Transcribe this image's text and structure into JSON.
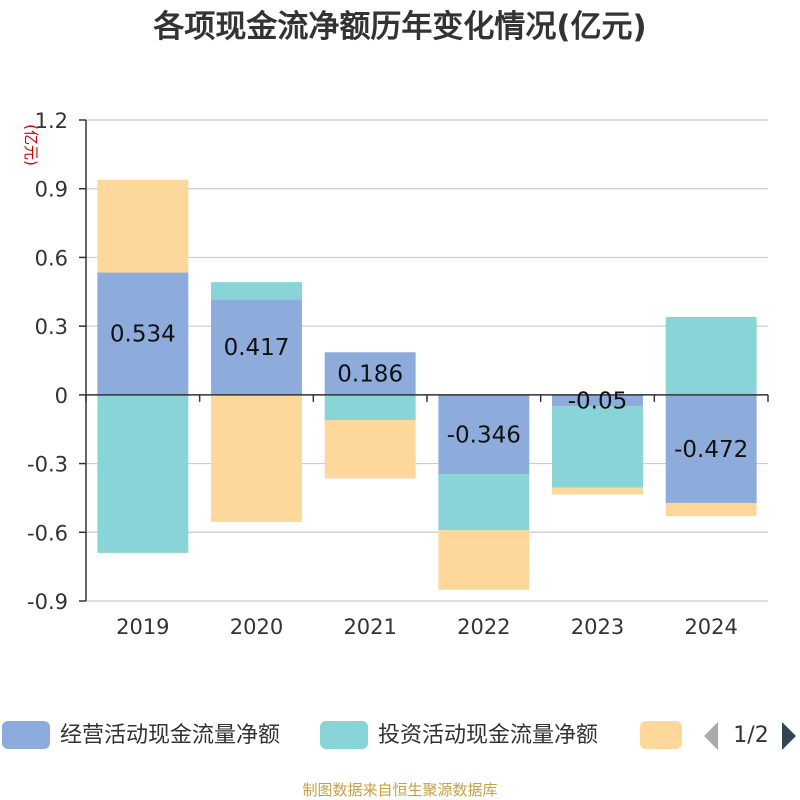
{
  "chart_data": {
    "type": "bar",
    "stacked": true,
    "title": "各项现金流净额历年变化情况(亿元)",
    "unit_label": "(亿元)",
    "categories": [
      "2019",
      "2020",
      "2021",
      "2022",
      "2023",
      "2024"
    ],
    "ylim": [
      -0.9,
      1.2
    ],
    "yticks": [
      "1.2",
      "0.9",
      "0.6",
      "0.3",
      "0",
      "-0.3",
      "-0.6",
      "-0.9"
    ],
    "grid": true,
    "legend_position": "bottom",
    "series": [
      {
        "name": "经营活动现金流量净额",
        "color": "#8eacdb",
        "values": [
          0.534,
          0.417,
          0.186,
          -0.346,
          -0.05,
          -0.472
        ],
        "labels": [
          "0.534",
          "0.417",
          "0.186",
          "-0.346",
          "-0.05",
          "-0.472"
        ]
      },
      {
        "name": "投资活动现金流量净额",
        "color": "#88d4d6",
        "values": [
          -0.69,
          0.075,
          -0.11,
          -0.245,
          -0.355,
          0.34
        ]
      },
      {
        "name": "",
        "color": "#fdd89a",
        "values": [
          0.405,
          -0.555,
          -0.255,
          -0.26,
          -0.03,
          -0.058
        ]
      }
    ]
  },
  "legend": {
    "pager": "1/2"
  },
  "source": "制图数据来自恒生聚源数据库"
}
